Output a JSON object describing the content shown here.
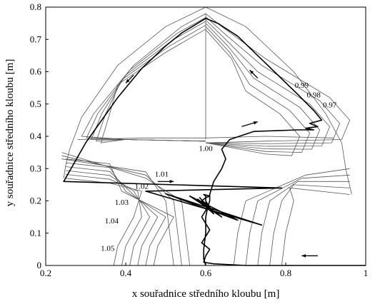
{
  "chart_data": {
    "type": "line",
    "title": "",
    "xlabel": "x souřadnice středního kloubu [m]",
    "ylabel": "y souřadnice středního kloubu [m]",
    "xlim": [
      0.2,
      1.0
    ],
    "ylim": [
      0.0,
      0.8
    ],
    "x_ticks": [
      "0.2",
      "0.4",
      "0.6",
      "0.8",
      "1"
    ],
    "y_ticks": [
      "0",
      "0.1",
      "0.2",
      "0.3",
      "0.4",
      "0.5",
      "0.6",
      "0.7",
      "0.8"
    ],
    "grid": false,
    "contour_labels": [
      {
        "text": "0.99",
        "x": 0.84,
        "y": 0.55
      },
      {
        "text": "0.98",
        "x": 0.87,
        "y": 0.52
      },
      {
        "text": "0.97",
        "x": 0.91,
        "y": 0.49
      },
      {
        "text": "1.00",
        "x": 0.6,
        "y": 0.355
      },
      {
        "text": "1.01",
        "x": 0.49,
        "y": 0.275
      },
      {
        "text": "1.02",
        "x": 0.44,
        "y": 0.238
      },
      {
        "text": "1.03",
        "x": 0.39,
        "y": 0.188
      },
      {
        "text": "1.04",
        "x": 0.365,
        "y": 0.13
      },
      {
        "text": "1.05",
        "x": 0.355,
        "y": 0.045
      }
    ],
    "series": [
      {
        "role": "trajectory",
        "x": [
          1.0,
          0.92,
          0.8,
          0.7,
          0.62,
          0.595,
          0.6,
          0.61,
          0.59,
          0.6,
          0.61,
          0.6,
          0.59,
          0.6,
          0.605,
          0.59,
          0.6,
          0.61,
          0.595,
          0.6,
          0.6,
          0.615,
          0.585,
          0.62,
          0.58,
          0.64,
          0.56,
          0.68,
          0.5,
          0.74,
          0.45,
          0.79,
          0.245,
          0.3,
          0.38,
          0.44,
          0.5,
          0.54,
          0.58,
          0.6,
          0.63,
          0.68,
          0.73,
          0.78,
          0.83,
          0.87,
          0.89,
          0.86,
          0.88,
          0.85,
          0.87,
          0.83,
          0.72,
          0.66,
          0.64,
          0.65,
          0.64,
          0.63,
          0.62,
          0.615,
          0.61,
          0.61,
          0.605,
          0.6,
          0.6,
          0.595,
          0.595,
          0.6
        ],
        "y": [
          0.0,
          0.0,
          0.0,
          0.0,
          0.005,
          0.01,
          0.03,
          0.05,
          0.07,
          0.09,
          0.11,
          0.13,
          0.15,
          0.17,
          0.19,
          0.2,
          0.21,
          0.215,
          0.22,
          0.215,
          0.2,
          0.17,
          0.21,
          0.16,
          0.205,
          0.15,
          0.215,
          0.14,
          0.222,
          0.125,
          0.23,
          0.24,
          0.26,
          0.38,
          0.52,
          0.61,
          0.68,
          0.72,
          0.75,
          0.765,
          0.75,
          0.71,
          0.65,
          0.59,
          0.53,
          0.48,
          0.45,
          0.44,
          0.43,
          0.425,
          0.42,
          0.42,
          0.415,
          0.39,
          0.36,
          0.33,
          0.3,
          0.28,
          0.26,
          0.24,
          0.22,
          0.2,
          0.18,
          0.15,
          0.1,
          0.05,
          0.02,
          0.0
        ]
      }
    ]
  }
}
